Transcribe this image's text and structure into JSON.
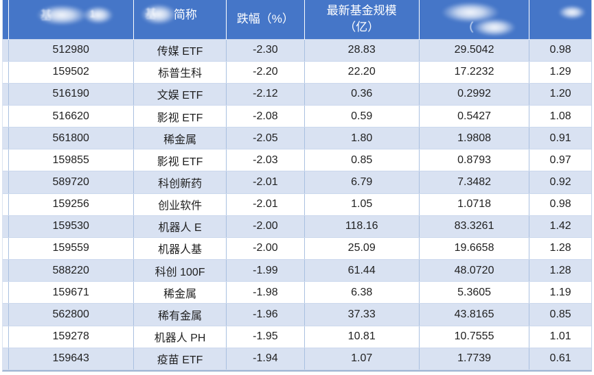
{
  "chart_data": {
    "type": "table",
    "headers": {
      "col1": {
        "obscured": true,
        "fragment_1": "基",
        "fragment_2": "1"
      },
      "col2": {
        "obscured": true,
        "visible": "简称"
      },
      "col3": {
        "label": "跌幅（%）"
      },
      "col4": {
        "line1": "最新基金规模",
        "line2": "（亿）"
      },
      "col5": {
        "obscured": true,
        "fragment_1": "（"
      },
      "col6": {
        "obscured": true
      }
    },
    "rows": [
      [
        "512980",
        "传媒 ETF",
        "-2.30",
        "28.83",
        "29.5042",
        "0.98"
      ],
      [
        "159502",
        "标普生科",
        "-2.20",
        "22.20",
        "17.2232",
        "1.29"
      ],
      [
        "516190",
        "文娱 ETF",
        "-2.12",
        "0.36",
        "0.2992",
        "1.20"
      ],
      [
        "516620",
        "影视 ETF",
        "-2.08",
        "0.59",
        "0.5427",
        "1.08"
      ],
      [
        "561800",
        "稀金属",
        "-2.05",
        "1.80",
        "1.9808",
        "0.91"
      ],
      [
        "159855",
        "影视 ETF",
        "-2.03",
        "0.85",
        "0.8793",
        "0.97"
      ],
      [
        "589720",
        "科创新药",
        "-2.01",
        "6.79",
        "7.3482",
        "0.92"
      ],
      [
        "159256",
        "创业软件",
        "-2.01",
        "1.05",
        "1.0718",
        "0.98"
      ],
      [
        "159530",
        "机器人 E",
        "-2.00",
        "118.16",
        "83.3261",
        "1.42"
      ],
      [
        "159559",
        "机器人基",
        "-2.00",
        "25.09",
        "19.6658",
        "1.28"
      ],
      [
        "588220",
        "科创 100F",
        "-1.99",
        "61.44",
        "48.0720",
        "1.28"
      ],
      [
        "159671",
        "稀金属",
        "-1.98",
        "6.38",
        "5.3605",
        "1.19"
      ],
      [
        "562800",
        "稀有金属",
        "-1.96",
        "37.33",
        "43.8165",
        "0.85"
      ],
      [
        "159278",
        "机器人 PH",
        "-1.95",
        "10.81",
        "10.7555",
        "1.01"
      ],
      [
        "159643",
        "疫苗 ETF",
        "-1.94",
        "1.07",
        "1.7739",
        "0.61"
      ]
    ]
  },
  "colors": {
    "header_bg": "#4576C8",
    "row_alt_bg": "#D9E2F2",
    "row_bg": "#FFFFFF",
    "grid_v": "#A9C0E0",
    "grid_h": "#CBD8ED",
    "text": "#1F1F1F",
    "header_text": "#FFFFFF"
  }
}
